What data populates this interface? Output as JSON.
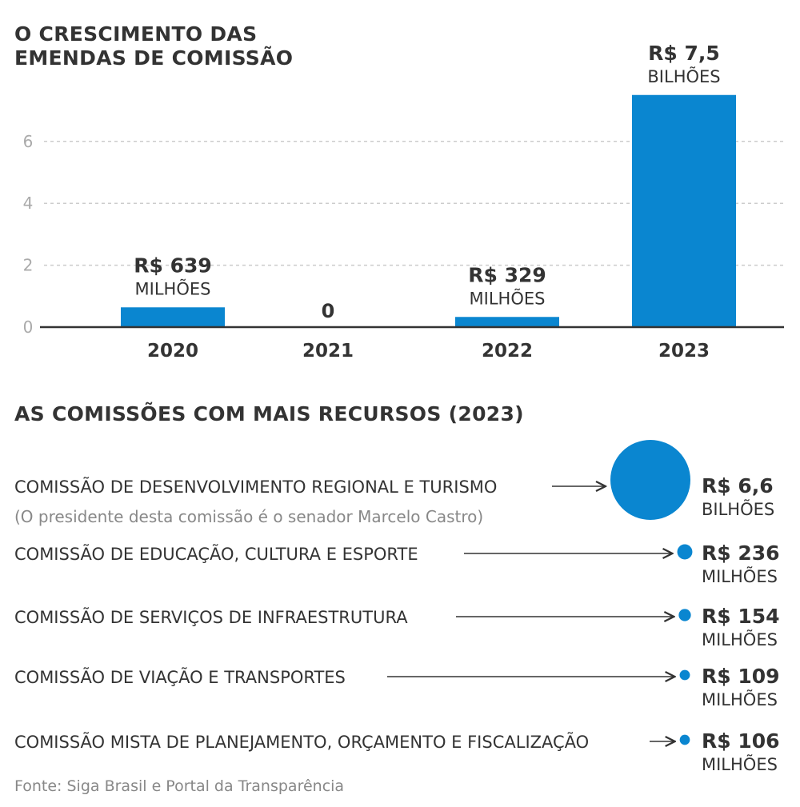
{
  "chart_data": [
    {
      "type": "bar",
      "title": "O CRESCIMENTO DAS EMENDAS DE COMISSÃO",
      "categories": [
        "2020",
        "2021",
        "2022",
        "2023"
      ],
      "values": [
        0.639,
        0,
        0.329,
        7.5
      ],
      "data_labels": [
        {
          "value": "R$ 639",
          "unit": "MILHÕES"
        },
        {
          "value": "0",
          "unit": ""
        },
        {
          "value": "R$ 329",
          "unit": "MILHÕES"
        },
        {
          "value": "R$ 7,5",
          "unit": "BILHÕES"
        }
      ],
      "yticks": [
        "0",
        "2",
        "4",
        "6"
      ],
      "ylim": [
        0,
        7.5
      ],
      "grid": true,
      "color": "#0a86d0"
    },
    {
      "type": "bubble",
      "title": "AS COMISSÕES COM MAIS RECURSOS (2023)",
      "color": "#0a86d0",
      "items": [
        {
          "label": "COMISSÃO DE DESENVOLVIMENTO REGIONAL E TURISMO",
          "note": "(O presidente desta comissão é o senador Marcelo Castro)",
          "value_millions": 6600,
          "value": "R$ 6,6",
          "unit": "BILHÕES"
        },
        {
          "label": "COMISSÃO DE EDUCAÇÃO, CULTURA E ESPORTE",
          "value_millions": 236,
          "value": "R$ 236",
          "unit": "MILHÕES"
        },
        {
          "label": "COMISSÃO DE SERVIÇOS DE INFRAESTRUTURA",
          "value_millions": 154,
          "value": "R$ 154",
          "unit": "MILHÕES"
        },
        {
          "label": "COMISSÃO DE VIAÇÃO E TRANSPORTES",
          "value_millions": 109,
          "value": "R$ 109",
          "unit": "MILHÕES"
        },
        {
          "label": "COMISSÃO MISTA DE PLANEJAMENTO, ORÇAMENTO E FISCALIZAÇÃO",
          "value_millions": 106,
          "value": "R$ 106",
          "unit": "MILHÕES"
        }
      ]
    }
  ],
  "source": "Fonte: Siga Brasil e Portal da Transparência"
}
